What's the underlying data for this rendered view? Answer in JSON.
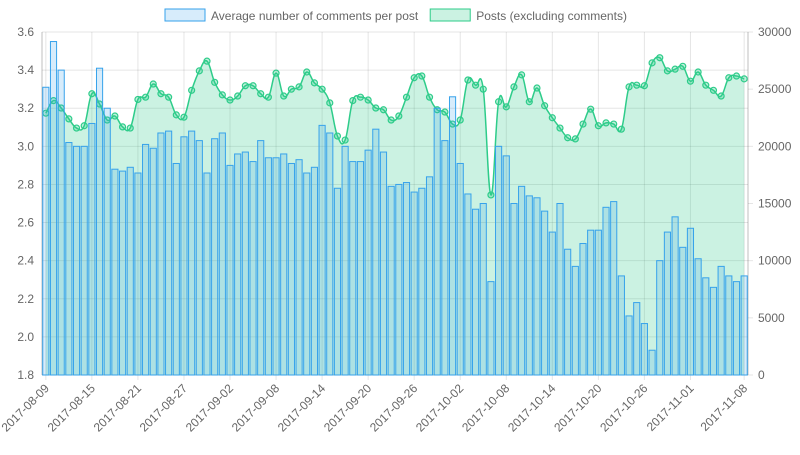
{
  "chart_data": {
    "type": "bar-line",
    "categories": [
      "2017-08-09",
      null,
      null,
      null,
      null,
      null,
      "2017-08-15",
      null,
      null,
      null,
      null,
      null,
      "2017-08-21",
      null,
      null,
      null,
      null,
      null,
      "2017-08-27",
      null,
      null,
      null,
      null,
      null,
      "2017-09-02",
      null,
      null,
      null,
      null,
      null,
      "2017-09-08",
      null,
      null,
      null,
      null,
      null,
      "2017-09-14",
      null,
      null,
      null,
      null,
      null,
      "2017-09-20",
      null,
      null,
      null,
      null,
      null,
      "2017-09-26",
      null,
      null,
      null,
      null,
      null,
      "2017-10-02",
      null,
      null,
      null,
      null,
      null,
      "2017-10-08",
      null,
      null,
      null,
      null,
      null,
      "2017-10-14",
      null,
      null,
      null,
      null,
      null,
      "2017-10-20",
      null,
      null,
      null,
      null,
      null,
      "2017-10-26",
      null,
      null,
      null,
      null,
      null,
      "2017-11-01",
      null,
      null,
      null,
      null,
      null,
      null,
      "2017-11-08"
    ],
    "series": [
      {
        "name": "Average number of comments per post",
        "kind": "bar",
        "axis": "y",
        "color": "#36a2eb",
        "fill": "rgba(54,162,235,0.2)",
        "values": [
          3.31,
          3.55,
          3.4,
          3.02,
          3.0,
          3.0,
          3.12,
          3.41,
          3.2,
          2.88,
          2.87,
          2.89,
          2.86,
          3.01,
          2.99,
          3.07,
          3.08,
          2.91,
          3.05,
          3.08,
          3.03,
          2.86,
          3.04,
          3.07,
          2.9,
          2.96,
          2.97,
          2.92,
          3.03,
          2.94,
          2.94,
          2.96,
          2.91,
          2.93,
          2.86,
          2.89,
          3.11,
          3.07,
          2.78,
          3.0,
          2.92,
          2.92,
          2.98,
          3.09,
          2.97,
          2.79,
          2.8,
          2.81,
          2.76,
          2.78,
          2.84,
          3.2,
          3.03,
          3.26,
          2.91,
          2.75,
          2.67,
          2.7,
          2.29,
          3.0,
          2.95,
          2.7,
          2.79,
          2.74,
          2.73,
          2.66,
          2.55,
          2.7,
          2.46,
          2.37,
          2.49,
          2.56,
          2.56,
          2.68,
          2.71,
          2.32,
          2.11,
          2.18,
          2.07,
          1.93,
          2.4,
          2.55,
          2.63,
          2.47,
          2.57,
          2.41,
          2.31,
          2.26,
          2.37,
          2.32,
          2.29,
          2.32
        ]
      },
      {
        "name": "Posts (excluding comments)",
        "kind": "line",
        "axis": "y2",
        "color": "#2ecc8a",
        "fill": "rgba(46,204,138,0.25)",
        "values": [
          22900,
          24000,
          23350,
          22400,
          21600,
          21800,
          24600,
          23700,
          22300,
          22650,
          21700,
          21600,
          24100,
          24300,
          25450,
          24600,
          24300,
          22750,
          22550,
          24900,
          26600,
          27450,
          25600,
          24500,
          24050,
          24400,
          25300,
          25300,
          24600,
          24300,
          26400,
          24400,
          25000,
          25200,
          26500,
          25550,
          25000,
          23800,
          20900,
          20550,
          24000,
          24300,
          24050,
          23350,
          23200,
          22300,
          22650,
          24300,
          26000,
          26150,
          24300,
          23200,
          23000,
          21950,
          22300,
          25800,
          25350,
          25000,
          15750,
          23900,
          23450,
          25200,
          26250,
          23900,
          25100,
          23550,
          22500,
          21600,
          20750,
          20650,
          21950,
          23250,
          21800,
          22050,
          21950,
          21500,
          25200,
          25350,
          25300,
          27300,
          27750,
          26600,
          26750,
          27000,
          25700,
          26500,
          25350,
          24900,
          24400,
          26000,
          26150,
          25900
        ]
      }
    ],
    "ylim": [
      1.8,
      3.6
    ],
    "yticks": [
      1.8,
      {
        "value": 2,
        "label": "2.0"
      },
      2.2,
      2.4,
      2.6,
      2.8,
      {
        "value": 3,
        "label": "3.0"
      },
      3.2,
      3.4,
      3.6
    ],
    "y2lim": [
      0,
      30000
    ],
    "y2ticks": [
      0,
      5000,
      10000,
      15000,
      20000,
      25000,
      30000
    ],
    "grid": true,
    "legend": "top"
  }
}
